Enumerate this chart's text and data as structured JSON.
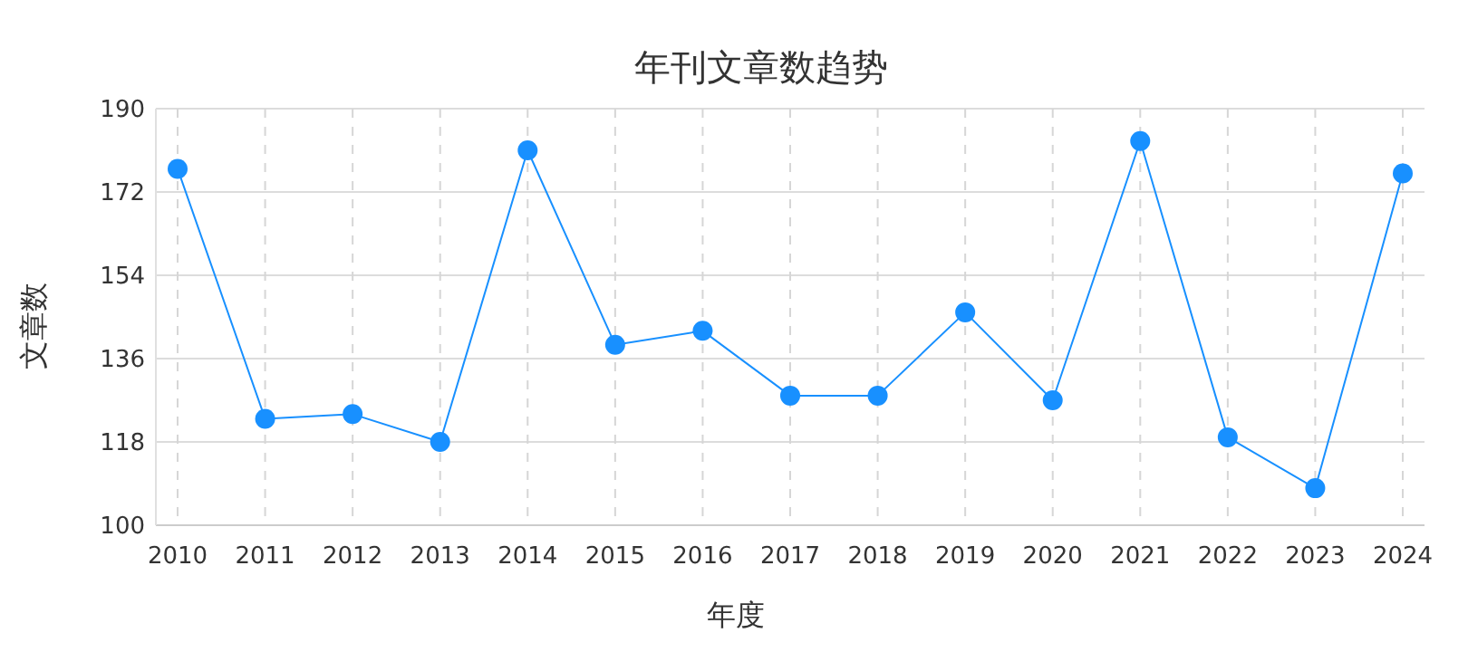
{
  "chart_data": {
    "type": "line",
    "title": "年刊文章数趋势",
    "xlabel": "年度",
    "ylabel": "文章数",
    "categories": [
      "2010",
      "2011",
      "2012",
      "2013",
      "2014",
      "2015",
      "2016",
      "2017",
      "2018",
      "2019",
      "2020",
      "2021",
      "2022",
      "2023",
      "2024"
    ],
    "series": [
      {
        "color": "#1890ff",
        "values": [
          177,
          123,
          124,
          118,
          181,
          139,
          142,
          128,
          128,
          146,
          127,
          183,
          119,
          108,
          176
        ]
      }
    ],
    "ylim": [
      100,
      190
    ],
    "yticks": [
      100,
      118,
      136,
      154,
      172,
      190
    ],
    "grid": true,
    "marker": "circle",
    "line_style": "solid"
  }
}
